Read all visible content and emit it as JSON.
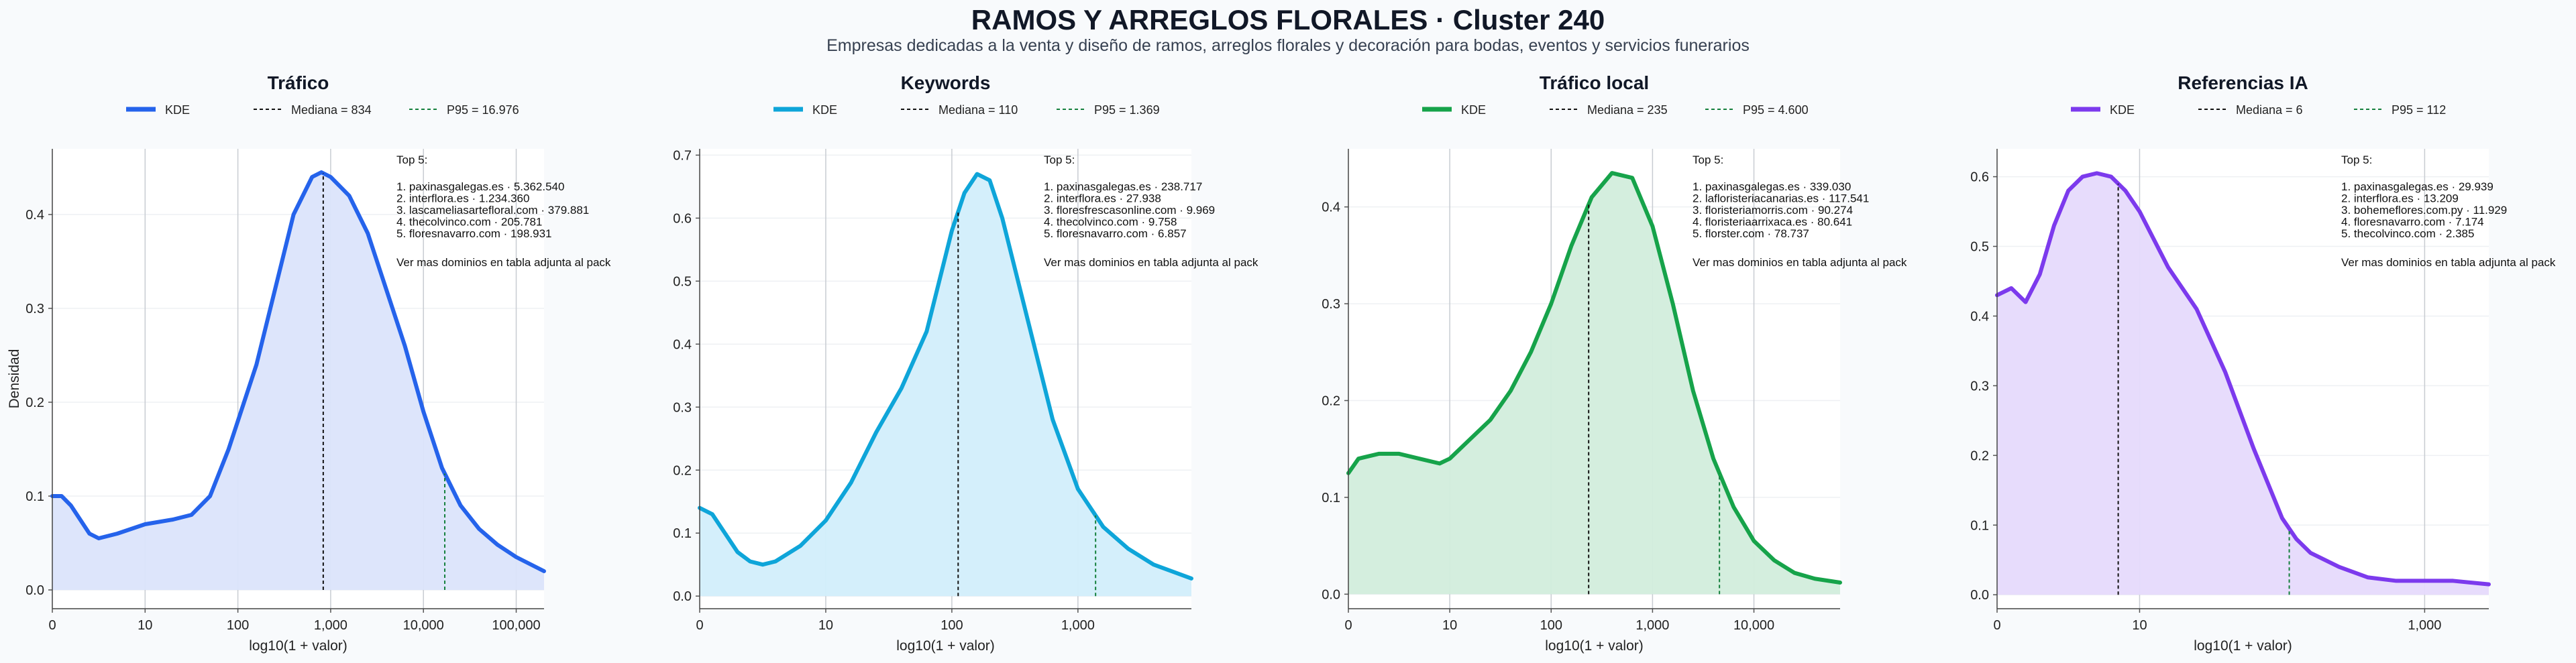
{
  "header": {
    "title": "RAMOS Y ARREGLOS FLORALES · Cluster 240",
    "subtitle": "Empresas dedicadas a la venta y diseño de ramos, arreglos florales y decoración para bodas, eventos y servicios funerarios"
  },
  "chart_data": [
    {
      "type": "area",
      "title": "Tráfico",
      "xlabel": "log10(1 + valor)",
      "ylabel": "Densidad",
      "color": "#2563eb",
      "fill": "#dbe4fb",
      "xlim": [
        0,
        5.3
      ],
      "ylim": [
        -0.02,
        0.47
      ],
      "xticks": [
        {
          "v": 0,
          "label": "0"
        },
        {
          "v": 1,
          "label": "10"
        },
        {
          "v": 2,
          "label": "100"
        },
        {
          "v": 3,
          "label": "1,000"
        },
        {
          "v": 4,
          "label": "10,000"
        },
        {
          "v": 5,
          "label": "100,000"
        }
      ],
      "yticks": [
        0.0,
        0.1,
        0.2,
        0.3,
        0.4
      ],
      "legend": [
        "KDE",
        "Mediana = 834",
        "P95 = 16.976"
      ],
      "median_x": 2.92,
      "p95_x": 4.23,
      "top_title": "Top 5:",
      "top_items": [
        "1. paxinasgalegas.es · 5.362.540",
        "2. interflora.es · 1.234.360",
        "3. lascameliasarteﬂoral.com · 379.881",
        "4. thecolvinco.com · 205.781",
        "5. floresnavarro.com · 198.931"
      ],
      "note": "Ver mas dominios en tabla adjunta al pack",
      "x": [
        0,
        0.1,
        0.2,
        0.4,
        0.5,
        0.7,
        1.0,
        1.3,
        1.5,
        1.7,
        1.9,
        2.0,
        2.2,
        2.4,
        2.6,
        2.8,
        2.9,
        3.0,
        3.2,
        3.4,
        3.6,
        3.8,
        4.0,
        4.2,
        4.4,
        4.6,
        4.8,
        5.0,
        5.3
      ],
      "y": [
        0.1,
        0.1,
        0.09,
        0.06,
        0.055,
        0.06,
        0.07,
        0.075,
        0.08,
        0.1,
        0.15,
        0.18,
        0.24,
        0.32,
        0.4,
        0.44,
        0.445,
        0.44,
        0.42,
        0.38,
        0.32,
        0.26,
        0.19,
        0.13,
        0.09,
        0.065,
        0.048,
        0.035,
        0.02
      ]
    },
    {
      "type": "area",
      "title": "Keywords",
      "xlabel": "log10(1 + valor)",
      "ylabel": "",
      "color": "#0ea5d9",
      "fill": "#d2eefb",
      "xlim": [
        0,
        3.9
      ],
      "ylim": [
        -0.02,
        0.71
      ],
      "xticks": [
        {
          "v": 0,
          "label": "0"
        },
        {
          "v": 1,
          "label": "10"
        },
        {
          "v": 2,
          "label": "100"
        },
        {
          "v": 3,
          "label": "1,000"
        }
      ],
      "yticks": [
        0.0,
        0.1,
        0.2,
        0.3,
        0.4,
        0.5,
        0.6,
        0.7
      ],
      "legend": [
        "KDE",
        "Mediana = 110",
        "P95 = 1.369"
      ],
      "median_x": 2.05,
      "p95_x": 3.14,
      "top_title": "Top 5:",
      "top_items": [
        "1. paxinasgalegas.es · 238.717",
        "2. interflora.es · 27.938",
        "3. floresfrescasonline.com · 9.969",
        "4. thecolvinco.com · 9.758",
        "5. floresnavarro.com · 6.857"
      ],
      "note": "Ver mas dominios en tabla adjunta al pack",
      "x": [
        0,
        0.1,
        0.2,
        0.3,
        0.4,
        0.5,
        0.6,
        0.8,
        1.0,
        1.2,
        1.4,
        1.6,
        1.8,
        1.9,
        2.0,
        2.1,
        2.2,
        2.3,
        2.4,
        2.6,
        2.8,
        3.0,
        3.2,
        3.4,
        3.6,
        3.9
      ],
      "y": [
        0.14,
        0.13,
        0.1,
        0.07,
        0.055,
        0.05,
        0.055,
        0.08,
        0.12,
        0.18,
        0.26,
        0.33,
        0.42,
        0.5,
        0.58,
        0.64,
        0.67,
        0.66,
        0.6,
        0.44,
        0.28,
        0.17,
        0.11,
        0.075,
        0.05,
        0.028
      ]
    },
    {
      "type": "area",
      "title": "Tráfico local",
      "xlabel": "log10(1 + valor)",
      "ylabel": "",
      "color": "#16a34a",
      "fill": "#d2eddc",
      "xlim": [
        0,
        4.85
      ],
      "ylim": [
        -0.015,
        0.46
      ],
      "xticks": [
        {
          "v": 0,
          "label": "0"
        },
        {
          "v": 1,
          "label": "10"
        },
        {
          "v": 2,
          "label": "100"
        },
        {
          "v": 3,
          "label": "1,000"
        },
        {
          "v": 4,
          "label": "10,000"
        }
      ],
      "yticks": [
        0.0,
        0.1,
        0.2,
        0.3,
        0.4
      ],
      "legend": [
        "KDE",
        "Mediana = 235",
        "P95 = 4.600"
      ],
      "median_x": 2.37,
      "p95_x": 3.66,
      "top_title": "Top 5:",
      "top_items": [
        "1. paxinasgalegas.es · 339.030",
        "2. lafloristeriacanarias.es · 117.541",
        "3. floristeriamorris.com · 90.274",
        "4. floristeriaarrixaca.es · 80.641",
        "5. florster.com · 78.737"
      ],
      "note": "Ver mas dominios en tabla adjunta al pack",
      "x": [
        0,
        0.1,
        0.3,
        0.5,
        0.7,
        0.9,
        1.0,
        1.2,
        1.4,
        1.6,
        1.8,
        2.0,
        2.2,
        2.4,
        2.6,
        2.8,
        3.0,
        3.2,
        3.4,
        3.6,
        3.8,
        4.0,
        4.2,
        4.4,
        4.6,
        4.85
      ],
      "y": [
        0.125,
        0.14,
        0.145,
        0.145,
        0.14,
        0.135,
        0.14,
        0.16,
        0.18,
        0.21,
        0.25,
        0.3,
        0.36,
        0.41,
        0.435,
        0.43,
        0.38,
        0.3,
        0.21,
        0.14,
        0.09,
        0.055,
        0.035,
        0.022,
        0.016,
        0.012
      ]
    },
    {
      "type": "area",
      "title": "Referencias IA",
      "xlabel": "log10(1 + valor)",
      "ylabel": "",
      "color": "#7c3aed",
      "fill": "#e6dafc",
      "xlim": [
        0,
        3.45
      ],
      "ylim": [
        -0.02,
        0.64
      ],
      "xticks": [
        {
          "v": 0,
          "label": "0"
        },
        {
          "v": 1,
          "label": "10"
        },
        {
          "v": 3,
          "label": "1,000"
        }
      ],
      "yticks": [
        0.0,
        0.1,
        0.2,
        0.3,
        0.4,
        0.5,
        0.6
      ],
      "legend": [
        "KDE",
        "Mediana = 6",
        "P95 = 112"
      ],
      "median_x": 0.85,
      "p95_x": 2.05,
      "top_title": "Top 5:",
      "top_items": [
        "1. paxinasgalegas.es · 29.939",
        "2. interflora.es · 13.209",
        "3. bohemeflores.com.py · 11.929",
        "4. floresnavarro.com · 7.174",
        "5. thecolvinco.com · 2.385"
      ],
      "note": "Ver mas dominios en tabla adjunta al pack",
      "x": [
        0,
        0.1,
        0.2,
        0.3,
        0.4,
        0.5,
        0.6,
        0.7,
        0.8,
        0.9,
        1.0,
        1.1,
        1.2,
        1.4,
        1.6,
        1.8,
        1.9,
        2.0,
        2.1,
        2.2,
        2.4,
        2.6,
        2.8,
        3.0,
        3.2,
        3.45
      ],
      "y": [
        0.43,
        0.44,
        0.42,
        0.46,
        0.53,
        0.58,
        0.6,
        0.605,
        0.6,
        0.58,
        0.55,
        0.51,
        0.47,
        0.41,
        0.32,
        0.21,
        0.16,
        0.11,
        0.08,
        0.06,
        0.04,
        0.025,
        0.02,
        0.02,
        0.02,
        0.015
      ]
    }
  ]
}
